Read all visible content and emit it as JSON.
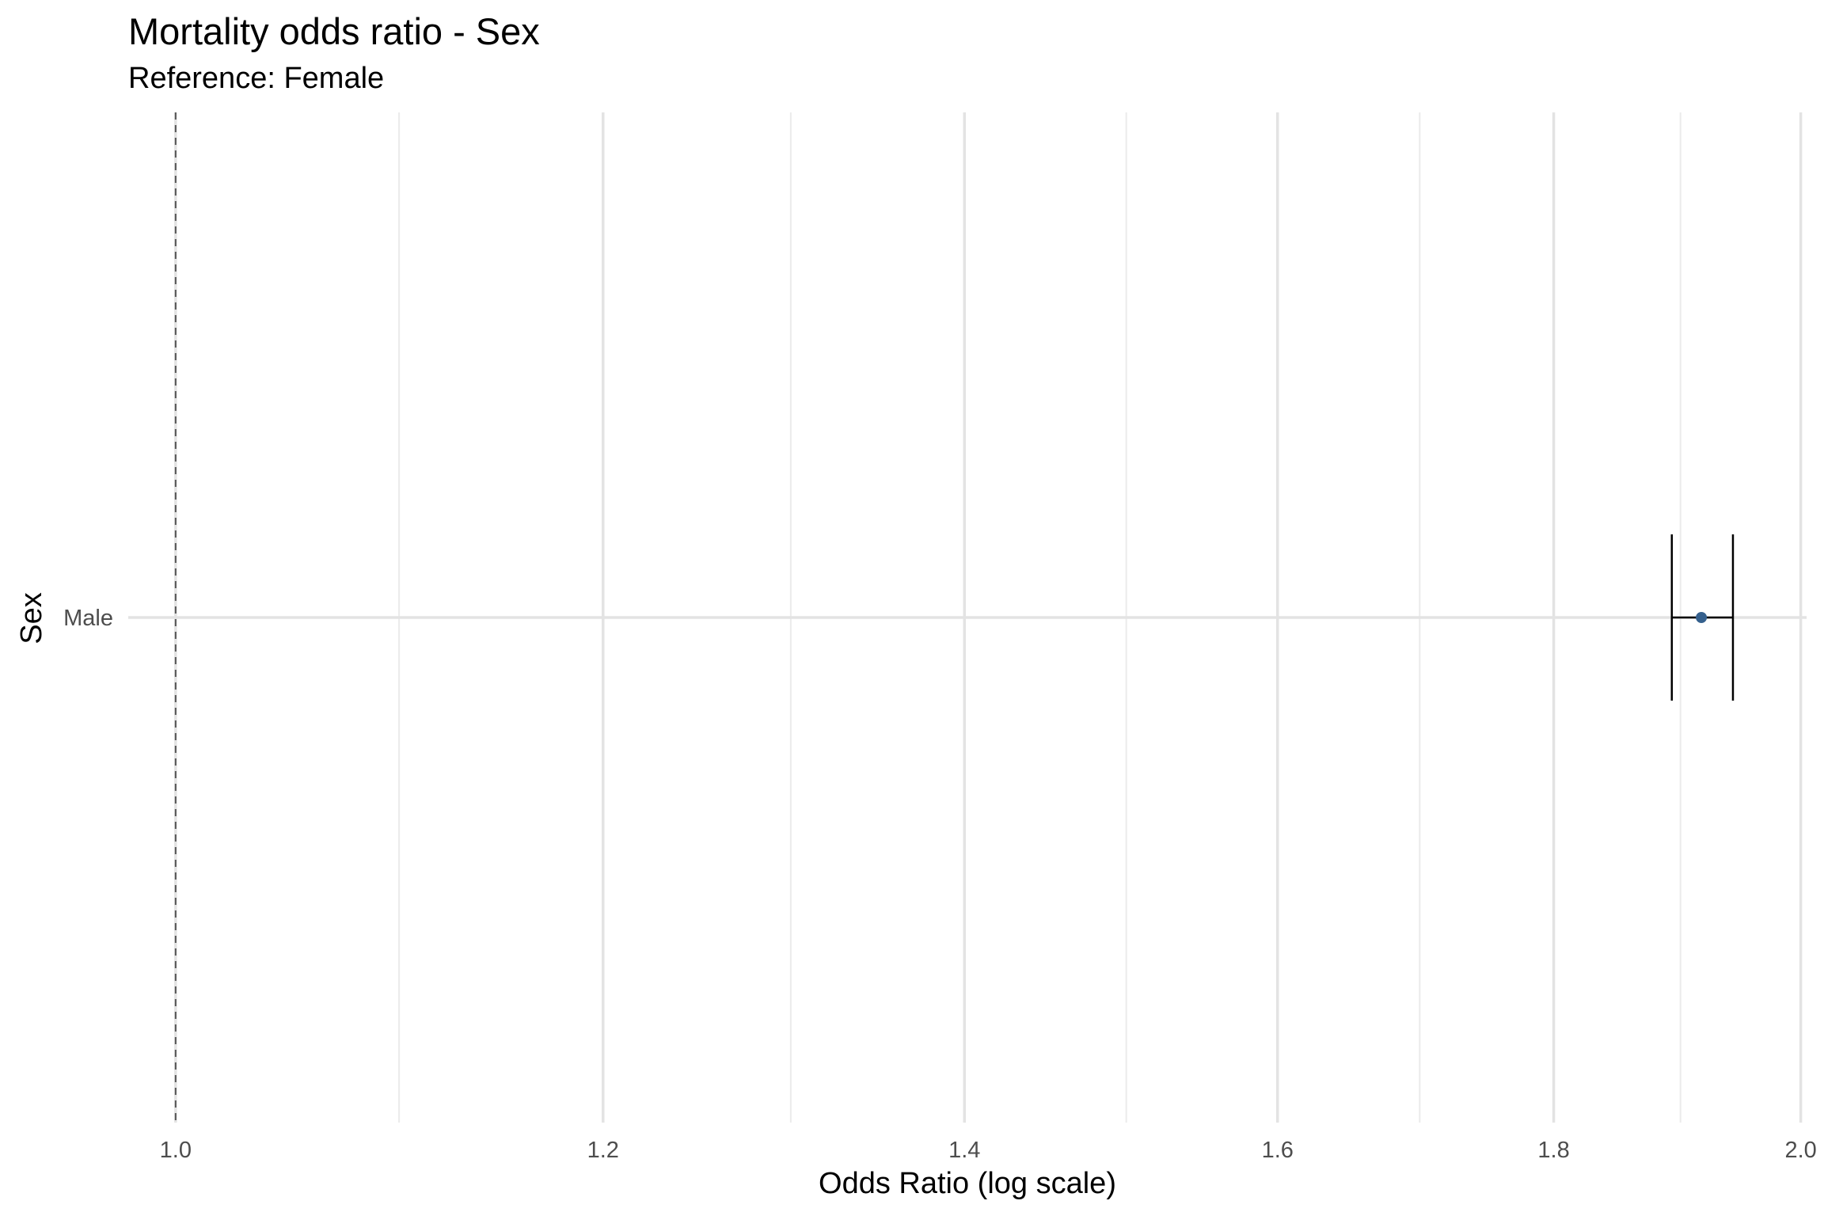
{
  "chart_data": {
    "type": "forest",
    "title": "Mortality odds ratio - Sex",
    "subtitle": "Reference: Female",
    "xlabel": "Odds Ratio (log scale)",
    "ylabel": "Sex",
    "x_scale": "log",
    "xlim": [
      0.98,
      2.005
    ],
    "x_ticks": [
      1.0,
      1.2,
      1.4,
      1.6,
      1.8,
      2.0
    ],
    "x_tick_labels": [
      "1.0",
      "1.2",
      "1.4",
      "1.6",
      "1.8",
      "2.0"
    ],
    "x_minor_ticks": [
      1.1,
      1.3,
      1.5,
      1.7,
      1.9
    ],
    "reference_line": 1.0,
    "categories": [
      "Male"
    ],
    "estimates": [
      1.917
    ],
    "ci_lower": [
      1.893
    ],
    "ci_upper": [
      1.943
    ],
    "point_color": "#35608d",
    "grid": true,
    "legend": "none"
  }
}
